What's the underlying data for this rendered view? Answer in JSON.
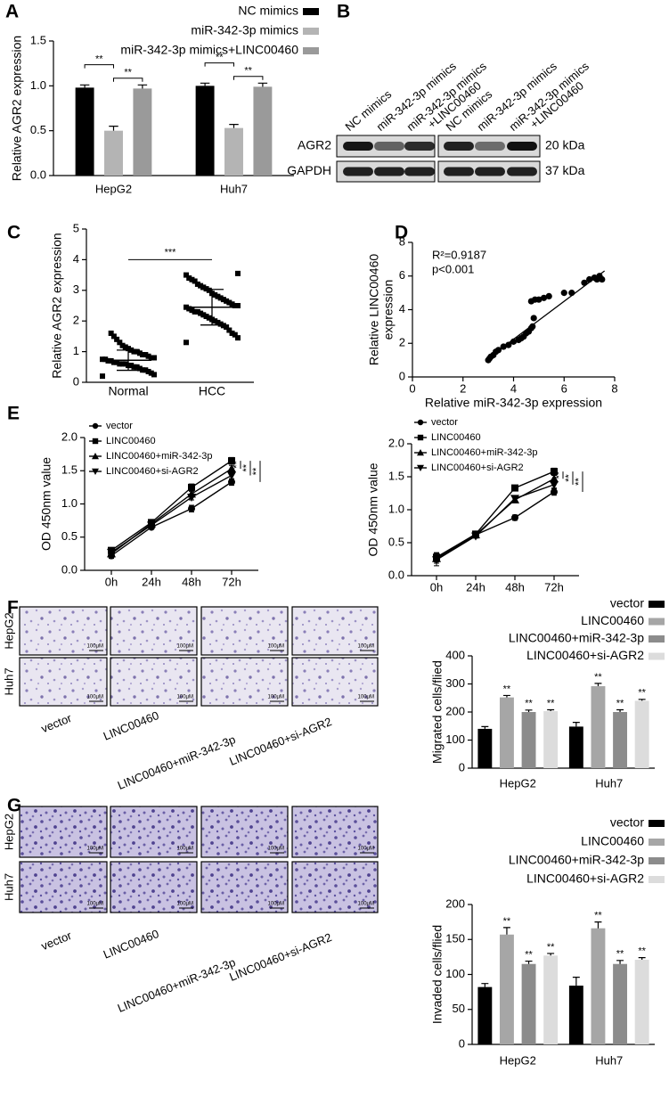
{
  "panel_labels": [
    "A",
    "B",
    "C",
    "D",
    "E",
    "F",
    "G"
  ],
  "western_blot": {
    "lanes": [
      [
        "NC mimics"
      ],
      [
        "miR-342-3p mimics"
      ],
      [
        "miR-342-3p mimics",
        "+LINC00460"
      ],
      [
        "NC mimics"
      ],
      [
        "miR-342-3p mimics"
      ],
      [
        "miR-342-3p mimics",
        "+LINC00460"
      ]
    ],
    "proteins": [
      {
        "name": "AGR2",
        "size": "20 kDa"
      },
      {
        "name": "GAPDH",
        "size": "37 kDa"
      }
    ]
  },
  "micrographs": [
    {
      "rows": [
        "HepG2",
        "Huh7"
      ],
      "columns": [
        "vector",
        "LINC00460",
        "LINC00460+miR-342-3p",
        "LINC00460+si-AGR2"
      ],
      "scale_bar": "100μM"
    },
    {
      "rows": [
        "HepG2",
        "Huh7"
      ],
      "columns": [
        "vector",
        "LINC00460",
        "LINC00460+miR-342-3p",
        "LINC00460+si-AGR2"
      ],
      "scale_bar": "100μM"
    }
  ],
  "chart_data": [
    {
      "type": "bar",
      "ylabel": "Relative AGR2 expression",
      "categories": [
        "HepG2",
        "Huh7"
      ],
      "legend": "upper right",
      "series": [
        {
          "name": "NC mimics",
          "color": "#000000",
          "values": [
            0.98,
            1.0
          ],
          "errors": [
            0.03,
            0.03
          ]
        },
        {
          "name": "miR-342-3p mimics",
          "color": "#b4b4b4",
          "values": [
            0.5,
            0.53
          ],
          "errors": [
            0.05,
            0.04
          ]
        },
        {
          "name": "miR-342-3p mimics+LINC00460",
          "color": "#9a9a9a",
          "values": [
            0.97,
            0.99
          ],
          "errors": [
            0.04,
            0.04
          ]
        }
      ],
      "ylim": [
        0,
        1.5
      ],
      "yticks": [
        {
          "value": 0,
          "label": "0.0"
        },
        0.5,
        {
          "value": 1,
          "label": "1.0"
        },
        1.5
      ],
      "comparisons": [
        {
          "category": 0,
          "from": 0,
          "to": 1,
          "label": "**"
        },
        {
          "category": 0,
          "from": 1,
          "to": 2,
          "label": "**"
        },
        {
          "category": 1,
          "from": 0,
          "to": 1,
          "label": "**"
        },
        {
          "category": 1,
          "from": 1,
          "to": 2,
          "label": "**"
        }
      ]
    },
    {
      "type": "strip",
      "ylabel": "Relative AGR2 expression",
      "categories": [
        "Normal",
        "HCC"
      ],
      "color": "#000000",
      "values": [
        [
          0.2,
          0.25,
          0.3,
          0.35,
          0.4,
          0.4,
          0.45,
          0.5,
          0.5,
          0.55,
          0.55,
          0.6,
          0.6,
          0.6,
          0.65,
          0.65,
          0.7,
          0.7,
          0.75,
          0.75,
          0.8,
          0.8,
          0.85,
          0.9,
          0.9,
          0.95,
          1.0,
          1.0,
          1.05,
          1.1,
          1.15,
          1.2,
          1.3,
          1.4,
          1.5,
          1.6
        ],
        [
          1.3,
          1.45,
          1.55,
          1.6,
          1.7,
          1.8,
          1.85,
          1.9,
          1.95,
          2.0,
          2.05,
          2.1,
          2.15,
          2.2,
          2.25,
          2.3,
          2.3,
          2.35,
          2.4,
          2.45,
          2.5,
          2.5,
          2.55,
          2.6,
          2.65,
          2.7,
          2.75,
          2.8,
          2.85,
          2.9,
          3.0,
          3.05,
          3.1,
          3.15,
          3.2,
          3.3,
          3.35,
          3.4,
          3.5,
          3.55
        ]
      ],
      "means": [
        0.72,
        2.45
      ],
      "sd": [
        0.33,
        0.58
      ],
      "ylim": [
        0,
        5
      ],
      "yticks": [
        0,
        1,
        2,
        3,
        4,
        5
      ],
      "comparisons": [
        {
          "from": 0,
          "to": 1,
          "y": 4.0,
          "label": "***"
        }
      ]
    },
    {
      "type": "scatter",
      "xlabel": "Relative miR-342-3p expression",
      "ylabel": [
        "Relative LINC00460",
        "expression"
      ],
      "color": "#000000",
      "x": [
        3.0,
        3.05,
        3.1,
        3.2,
        3.3,
        3.4,
        3.6,
        3.8,
        4.0,
        4.2,
        4.3,
        4.4,
        4.5,
        4.6,
        4.7,
        4.75,
        4.8,
        4.7,
        4.85,
        5.0,
        5.2,
        5.4,
        6.0,
        6.3,
        6.8,
        7.0,
        7.2,
        7.3,
        7.4,
        7.5
      ],
      "y": [
        1.0,
        1.1,
        1.2,
        1.3,
        1.5,
        1.6,
        1.8,
        1.9,
        2.1,
        2.2,
        2.3,
        2.4,
        2.6,
        2.7,
        2.9,
        3.0,
        3.5,
        4.5,
        4.6,
        4.6,
        4.7,
        4.8,
        5.0,
        5.0,
        5.6,
        5.8,
        5.9,
        5.8,
        6.0,
        5.8
      ],
      "fit": {
        "slope": 1.128,
        "intercept": -2.27,
        "x": [
          2.9,
          7.6
        ]
      },
      "annotations": [
        "R²=0.9187",
        "p<0.001"
      ],
      "xlim": [
        0,
        8
      ],
      "xticks": [
        0,
        2,
        4,
        6,
        8
      ],
      "ylim": [
        0,
        8
      ],
      "yticks": [
        0,
        2,
        4,
        6,
        8
      ]
    },
    {
      "type": "line",
      "ylabel": "OD 450nm value",
      "categories": [
        "0h",
        "24h",
        "48h",
        "72h"
      ],
      "legend": "upper left",
      "series": [
        {
          "name": "vector",
          "color": "#000000",
          "marker": "circle",
          "values": [
            0.22,
            0.65,
            0.93,
            1.33
          ],
          "errors": [
            0.04,
            0.03,
            0.05,
            0.05
          ]
        },
        {
          "name": "LINC00460",
          "color": "#000000",
          "marker": "square",
          "values": [
            0.3,
            0.72,
            1.25,
            1.65
          ],
          "errors": [
            0.04,
            0.03,
            0.05,
            0.05
          ]
        },
        {
          "name": "LINC00460+miR-342-3p",
          "color": "#000000",
          "marker": "triangle",
          "values": [
            0.25,
            0.7,
            1.15,
            1.53
          ],
          "errors": [
            0.04,
            0.03,
            0.04,
            0.05
          ]
        },
        {
          "name": "LINC00460+si-AGR2",
          "color": "#000000",
          "marker": "triangle-down",
          "values": [
            0.27,
            0.68,
            1.1,
            1.43
          ],
          "errors": [
            0.04,
            0.03,
            0.04,
            0.05
          ]
        }
      ],
      "ylim": [
        0,
        2
      ],
      "yticks": [
        {
          "value": 0,
          "label": "0.0"
        },
        0.5,
        {
          "value": 1,
          "label": "1.0"
        },
        1.5,
        {
          "value": 2,
          "label": "2.0"
        }
      ],
      "comparisons": [
        {
          "from": 1,
          "to": 2,
          "label": "**"
        },
        {
          "from": 1,
          "to": 3,
          "label": "**"
        },
        {
          "from": 1,
          "to": 0,
          "label": "**"
        }
      ]
    },
    {
      "type": "line",
      "ylabel": "OD 450nm value",
      "categories": [
        "0h",
        "24h",
        "48h",
        "72h"
      ],
      "legend": "upper left",
      "series": [
        {
          "name": "vector",
          "color": "#000000",
          "marker": "circle",
          "values": [
            0.25,
            0.62,
            0.88,
            1.27
          ],
          "errors": [
            0.1,
            0.03,
            0.04,
            0.05
          ]
        },
        {
          "name": "LINC00460",
          "color": "#000000",
          "marker": "square",
          "values": [
            0.28,
            0.63,
            1.33,
            1.58
          ],
          "errors": [
            0.06,
            0.03,
            0.04,
            0.05
          ]
        },
        {
          "name": "LINC00460+miR-342-3p",
          "color": "#000000",
          "marker": "triangle",
          "values": [
            0.26,
            0.62,
            1.15,
            1.47
          ],
          "errors": [
            0.05,
            0.03,
            0.04,
            0.05
          ]
        },
        {
          "name": "LINC00460+si-AGR2",
          "color": "#000000",
          "marker": "triangle-down",
          "values": [
            0.24,
            0.6,
            1.17,
            1.38
          ],
          "errors": [
            0.05,
            0.03,
            0.04,
            0.05
          ]
        }
      ],
      "ylim": [
        0,
        2
      ],
      "yticks": [
        {
          "value": 0,
          "label": "0.0"
        },
        0.5,
        {
          "value": 1,
          "label": "1.0"
        },
        1.5,
        {
          "value": 2,
          "label": "2.0"
        }
      ],
      "comparisons": [
        {
          "from": 1,
          "to": 2,
          "label": "**"
        },
        {
          "from": 1,
          "to": 3,
          "label": "**"
        },
        {
          "from": 1,
          "to": 0,
          "label": "**"
        }
      ]
    },
    {
      "type": "bar",
      "ylabel": "Migrated cells/flied",
      "categories": [
        "HepG2",
        "Huh7"
      ],
      "legend": "upper right",
      "series": [
        {
          "name": "vector",
          "color": "#000000",
          "values": [
            140,
            148
          ],
          "errors": [
            8,
            15
          ]
        },
        {
          "name": "LINC00460",
          "color": "#a6a6a6",
          "values": [
            252,
            292
          ],
          "errors": [
            7,
            10
          ],
          "significance": [
            "**",
            "**"
          ]
        },
        {
          "name": "LINC00460+miR-342-3p",
          "color": "#8c8c8c",
          "values": [
            200,
            200
          ],
          "errors": [
            7,
            8
          ],
          "significance": [
            "**",
            "**"
          ]
        },
        {
          "name": "LINC00460+si-AGR2",
          "color": "#dcdcdc",
          "values": [
            203,
            240
          ],
          "errors": [
            5,
            5
          ],
          "significance": [
            "**",
            "**"
          ]
        }
      ],
      "ylim": [
        0,
        400
      ],
      "yticks": [
        0,
        100,
        200,
        300,
        400
      ]
    },
    {
      "type": "bar",
      "ylabel": "Invaded cells/flied",
      "categories": [
        "HepG2",
        "Huh7"
      ],
      "legend": "upper right",
      "series": [
        {
          "name": "vector",
          "color": "#000000",
          "values": [
            82,
            84
          ],
          "errors": [
            5,
            12
          ]
        },
        {
          "name": "LINC00460",
          "color": "#a6a6a6",
          "values": [
            157,
            166
          ],
          "errors": [
            10,
            9
          ],
          "significance": [
            "**",
            "**"
          ]
        },
        {
          "name": "LINC00460+miR-342-3p",
          "color": "#8c8c8c",
          "values": [
            115,
            115
          ],
          "errors": [
            4,
            5
          ],
          "significance": [
            "**",
            "**"
          ]
        },
        {
          "name": "LINC00460+si-AGR2",
          "color": "#dcdcdc",
          "values": [
            127,
            121
          ],
          "errors": [
            3,
            3
          ],
          "significance": [
            "**",
            "**"
          ]
        }
      ],
      "ylim": [
        0,
        200
      ],
      "yticks": [
        0,
        50,
        100,
        150,
        200
      ]
    }
  ]
}
